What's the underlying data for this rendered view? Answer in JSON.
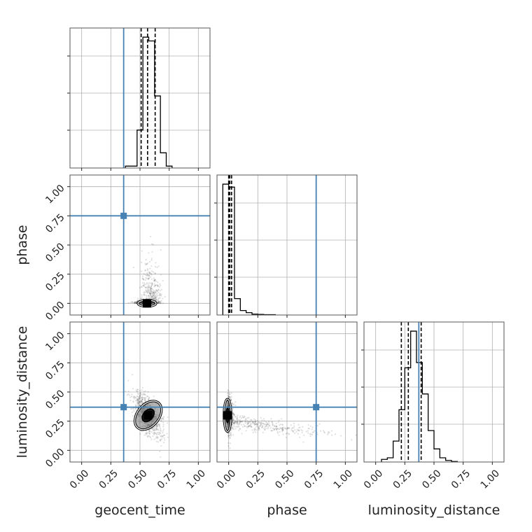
{
  "chart_data": {
    "type": "corner",
    "parameters": [
      "geocent_time",
      "phase",
      "luminosity_distance"
    ],
    "axis_range": [
      -0.1,
      1.1
    ],
    "ticks": [
      0.0,
      0.25,
      0.5,
      0.75,
      1.0
    ],
    "tick_labels": [
      "0.00",
      "0.25",
      "0.50",
      "0.75",
      "1.00"
    ],
    "grid": true,
    "truth_color": "#4682b4",
    "truths": {
      "geocent_time": 0.36,
      "phase": 0.75,
      "luminosity_distance": 0.37
    },
    "quantiles": {
      "geocent_time": [
        0.51,
        0.565,
        0.63
      ],
      "phase": [
        0.0,
        0.01,
        0.025
      ],
      "luminosity_distance": [
        0.22,
        0.28,
        0.39
      ]
    },
    "histograms": {
      "geocent_time": {
        "bins": [
          0.375,
          0.425,
          0.475,
          0.525,
          0.575,
          0.625,
          0.675,
          0.725,
          0.775
        ],
        "counts": [
          0.5,
          0.5,
          10.0,
          34.5,
          33.5,
          19.0,
          4.0,
          0.5
        ]
      },
      "phase": {
        "bins": [
          -0.05,
          0.0,
          0.05,
          0.1,
          0.15,
          0.2,
          0.25,
          0.3,
          0.4
        ],
        "counts": [
          44.0,
          43.0,
          5.5,
          1.5,
          0.8,
          0.3,
          0.2,
          0.1
        ]
      },
      "luminosity_distance": {
        "bins": [
          0.05,
          0.1,
          0.15,
          0.2,
          0.25,
          0.3,
          0.35,
          0.4,
          0.45,
          0.5,
          0.55,
          0.6,
          0.65,
          0.7
        ],
        "counts": [
          0.5,
          0.8,
          4.0,
          10.0,
          18.0,
          25.0,
          19.0,
          13.0,
          6.0,
          2.5,
          0.8,
          0.3,
          0.1
        ]
      }
    },
    "contours": {
      "geocent_time|phase": {
        "center": [
          0.56,
          0.0
        ],
        "spread": [
          0.05,
          0.012
        ]
      },
      "geocent_time|luminosity_distance": {
        "center": [
          0.57,
          0.3
        ],
        "spread": [
          0.06,
          0.09
        ]
      },
      "phase|luminosity_distance": {
        "center": [
          -0.01,
          0.3
        ],
        "spread": [
          0.02,
          0.09
        ]
      }
    },
    "x_labels": [
      "geocent_time",
      "phase",
      "luminosity_distance"
    ],
    "y_labels": [
      "phase",
      "luminosity_distance"
    ]
  }
}
